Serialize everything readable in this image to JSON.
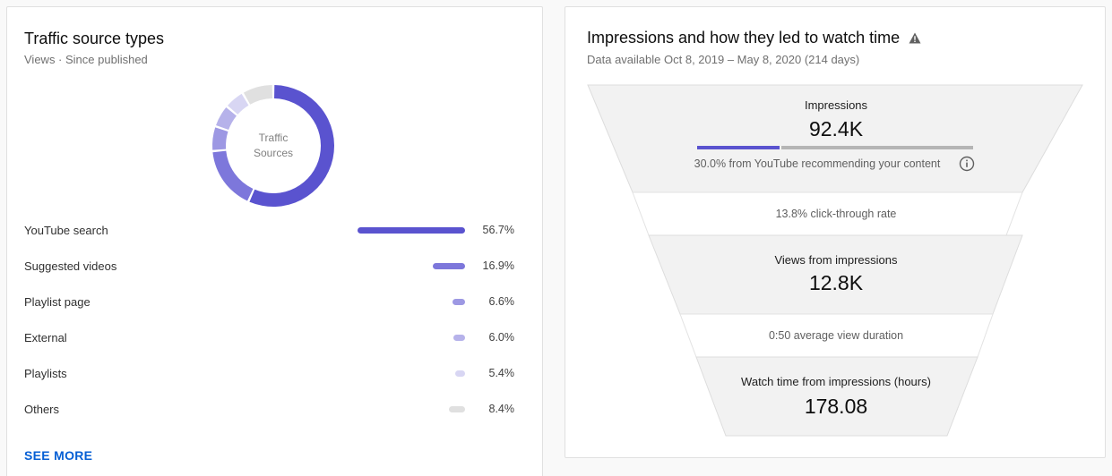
{
  "traffic": {
    "title": "Traffic source types",
    "subtitle": "Views · Since published",
    "donut_center_line1": "Traffic",
    "donut_center_line2": "Sources",
    "sources": [
      {
        "label": "YouTube search",
        "percent": 56.7,
        "percent_label": "56.7%",
        "color": "#5a53cf"
      },
      {
        "label": "Suggested videos",
        "percent": 16.9,
        "percent_label": "16.9%",
        "color": "#7d77db"
      },
      {
        "label": "Playlist page",
        "percent": 6.6,
        "percent_label": "6.6%",
        "color": "#9d98e3"
      },
      {
        "label": "External",
        "percent": 6.0,
        "percent_label": "6.0%",
        "color": "#b6b2ea"
      },
      {
        "label": "Playlists",
        "percent": 5.4,
        "percent_label": "5.4%",
        "color": "#d8d6f3"
      },
      {
        "label": "Others",
        "percent": 8.4,
        "percent_label": "8.4%",
        "color": "#e0e0e0"
      }
    ],
    "see_more": "SEE MORE"
  },
  "funnel": {
    "title": "Impressions and how they led to watch time",
    "warning_icon": "warning-triangle-icon",
    "subtitle": "Data available Oct 8, 2019 – May 8, 2020 (214 days)",
    "impressions_label": "Impressions",
    "impressions_value": "92.4K",
    "impressions_youtube_fraction": 0.3,
    "impressions_note": "30.0% from YouTube recommending your content",
    "info_icon": "info-icon",
    "ctr_note": "13.8% click-through rate",
    "views_label": "Views from impressions",
    "views_value": "12.8K",
    "avd_note": "0:50 average view duration",
    "watch_label": "Watch time from impressions (hours)",
    "watch_value": "178.08"
  }
}
